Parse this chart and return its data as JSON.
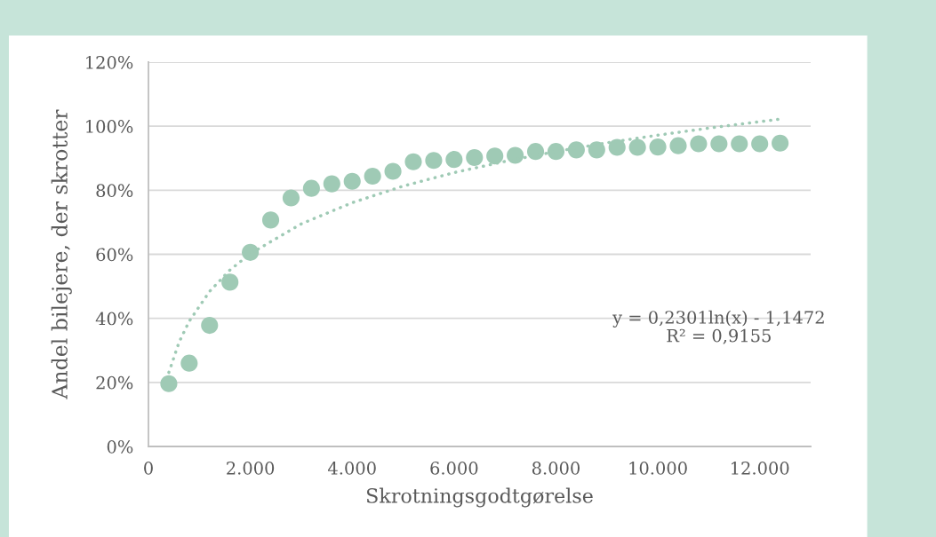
{
  "chart_data": {
    "type": "scatter",
    "xlabel": "Skrotningsgodtgørelse",
    "ylabel": "Andel bilejere, der skrotter",
    "x": [
      400,
      800,
      1200,
      1600,
      2000,
      2400,
      2800,
      3200,
      3600,
      4000,
      4400,
      4800,
      5200,
      5600,
      6000,
      6400,
      6800,
      7200,
      7600,
      8000,
      8400,
      8800,
      9200,
      9600,
      10000,
      10400,
      10800,
      11200,
      11600,
      12000,
      12400
    ],
    "series": [
      {
        "color": "#9fcab5",
        "marker": "circle",
        "values": [
          19.6,
          26.0,
          37.8,
          51.3,
          60.6,
          70.7,
          77.6,
          80.6,
          82.0,
          82.8,
          84.4,
          85.9,
          88.9,
          89.3,
          89.6,
          90.2,
          90.7,
          90.9,
          92.1,
          92.1,
          92.6,
          92.6,
          93.4,
          93.4,
          93.5,
          93.9,
          94.5,
          94.5,
          94.5,
          94.5,
          94.7
        ]
      },
      {
        "type": "line",
        "color": "#9fcab5",
        "line_style": "dotted",
        "marker": "none",
        "x": [
          400,
          600,
          800,
          1200,
          1600,
          2000,
          3000,
          4000,
          5000,
          6000,
          7000,
          8000,
          9000,
          10000,
          11000,
          12400
        ],
        "values": [
          23.1,
          32.5,
          39.1,
          48.4,
          55.1,
          60.2,
          69.5,
          76.1,
          81.3,
          85.5,
          89.0,
          92.1,
          94.8,
          97.2,
          99.4,
          102.2
        ]
      }
    ],
    "annotations": [
      "y = 0,2301ln(x) - 1,1472\nR² = 0,9155"
    ],
    "xlim": [
      0,
      13000
    ],
    "xticks": [
      0,
      {
        "value": 2000,
        "label": "2.000"
      },
      {
        "value": 4000,
        "label": "4.000"
      },
      {
        "value": 6000,
        "label": "6.000"
      },
      {
        "value": 8000,
        "label": "8.000"
      },
      {
        "value": 10000,
        "label": "10.000"
      },
      {
        "value": 12000,
        "label": "12.000"
      }
    ],
    "ylim": [
      0,
      120
    ],
    "yticks": [
      {
        "value": 0,
        "label": "0%"
      },
      {
        "value": 20,
        "label": "20%"
      },
      {
        "value": 40,
        "label": "40%"
      },
      {
        "value": 60,
        "label": "60%"
      },
      {
        "value": 80,
        "label": "80%"
      },
      {
        "value": 100,
        "label": "100%"
      },
      {
        "value": 120,
        "label": "120%"
      }
    ],
    "grid": "y",
    "legend": false
  }
}
